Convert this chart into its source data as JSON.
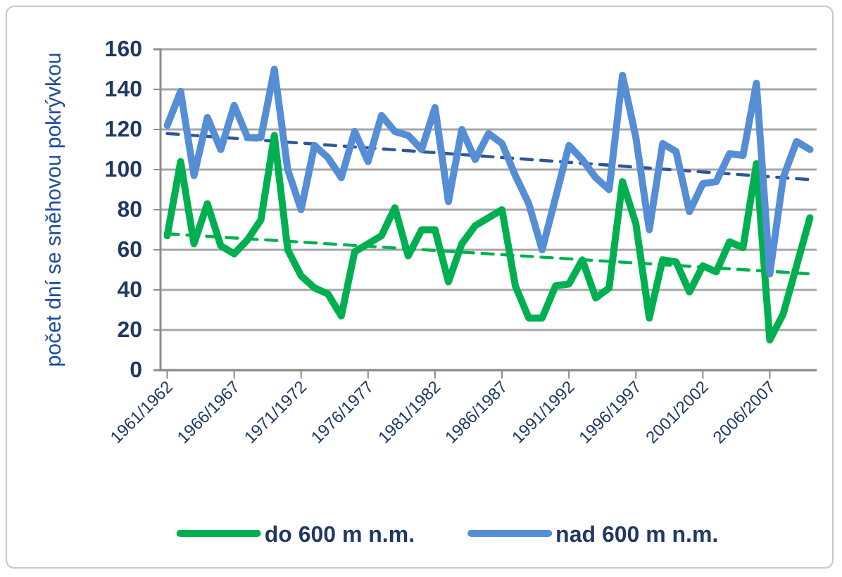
{
  "chart_data": {
    "type": "line",
    "ylabel": "počet dní se sněhovou pokrývkou",
    "categories": [
      "1961/1962",
      null,
      null,
      null,
      null,
      "1966/1967",
      null,
      null,
      null,
      null,
      "1971/1972",
      null,
      null,
      null,
      null,
      "1976/1977",
      null,
      null,
      null,
      null,
      "1981/1982",
      null,
      null,
      null,
      null,
      "1986/1987",
      null,
      null,
      null,
      null,
      "1991/1992",
      null,
      null,
      null,
      null,
      "1996/1997",
      null,
      null,
      null,
      null,
      "2001/2002",
      null,
      null,
      null,
      null,
      "2006/2007",
      null,
      null,
      null
    ],
    "series": [
      {
        "name": "do 600 m n.m.",
        "color": "#00b050",
        "values": [
          67,
          104,
          63,
          83,
          62,
          58,
          65,
          75,
          117,
          60,
          47,
          41,
          38,
          27,
          59,
          63,
          67,
          81,
          57,
          70,
          70,
          44,
          63,
          72,
          76,
          80,
          42,
          26,
          26,
          42,
          43,
          55,
          36,
          41,
          94,
          73,
          26,
          55,
          54,
          39,
          52,
          49,
          64,
          61,
          103,
          15,
          28,
          52,
          76
        ]
      },
      {
        "name": "nad 600 m n.m.",
        "color": "#558ed5",
        "values": [
          122,
          139,
          97,
          126,
          110,
          132,
          116,
          116,
          150,
          100,
          80,
          112,
          106,
          96,
          119,
          104,
          127,
          119,
          117,
          110,
          131,
          84,
          120,
          105,
          118,
          113,
          97,
          83,
          60,
          86,
          112,
          105,
          96,
          90,
          147,
          116,
          70,
          113,
          109,
          79,
          93,
          94,
          108,
          107,
          143,
          48,
          96,
          114,
          110
        ]
      },
      {
        "type": "line",
        "color": "#00b050",
        "line_style": "dashed",
        "values": [
          68,
          null,
          null,
          null,
          null,
          null,
          null,
          null,
          null,
          null,
          null,
          null,
          null,
          null,
          null,
          null,
          null,
          null,
          null,
          null,
          null,
          null,
          null,
          null,
          null,
          null,
          null,
          null,
          null,
          null,
          null,
          null,
          null,
          null,
          null,
          null,
          null,
          null,
          null,
          null,
          null,
          null,
          null,
          null,
          null,
          null,
          null,
          null,
          48
        ]
      },
      {
        "type": "line",
        "color": "#2f5597",
        "line_style": "dashed",
        "values": [
          118,
          null,
          null,
          null,
          null,
          null,
          null,
          null,
          null,
          null,
          null,
          null,
          null,
          null,
          null,
          null,
          null,
          null,
          null,
          null,
          null,
          null,
          null,
          null,
          null,
          null,
          null,
          null,
          null,
          null,
          null,
          null,
          null,
          null,
          null,
          null,
          null,
          null,
          null,
          null,
          null,
          null,
          null,
          null,
          null,
          null,
          null,
          null,
          95
        ]
      }
    ],
    "ylim": [
      0,
      160
    ],
    "yticks": [
      0,
      20,
      40,
      60,
      80,
      100,
      120,
      140,
      160
    ],
    "grid": "y",
    "legend": "bottom",
    "marker": "none",
    "line_style": "solid"
  }
}
